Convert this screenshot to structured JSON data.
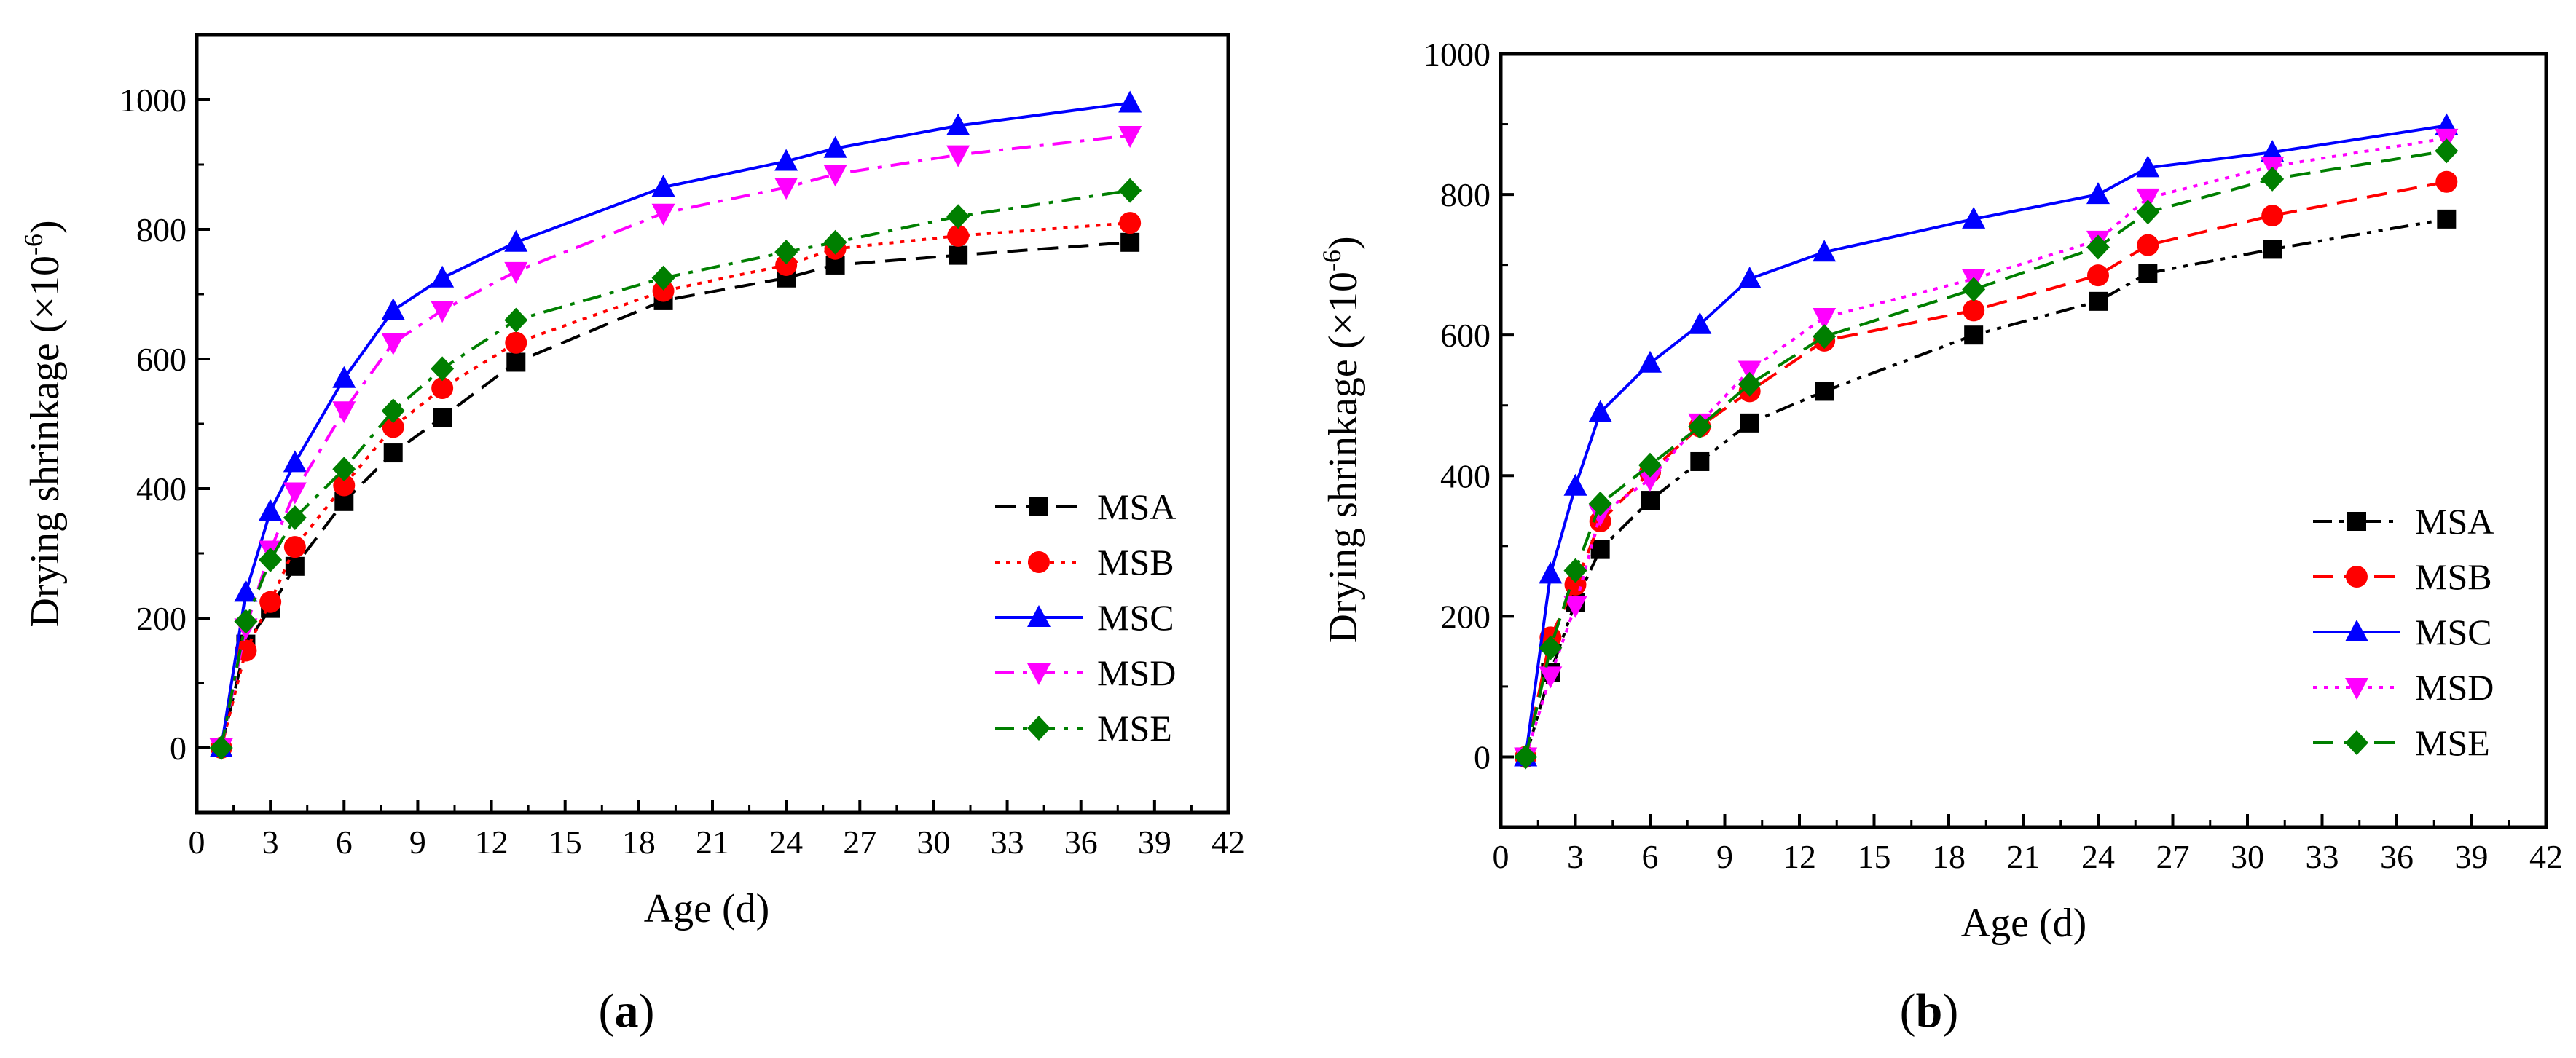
{
  "colors": {
    "MSA": "#000000",
    "MSB": "#ff0000",
    "MSC": "#0000ff",
    "MSD": "#ff00ff",
    "MSE": "#007f00"
  },
  "chart_data": [
    {
      "type": "line",
      "panel_label": "a",
      "xlabel": "Age (d)",
      "ylabel": "Drying shrinkage (×10",
      "ylabel_exp": "-6",
      "ylabel_close": ")",
      "xlim": [
        0,
        42
      ],
      "ylim": [
        -100,
        1100
      ],
      "xticks": [
        0,
        3,
        6,
        9,
        12,
        15,
        18,
        21,
        24,
        27,
        30,
        33,
        36,
        39,
        42
      ],
      "yticks": [
        0,
        200,
        400,
        600,
        800,
        1000
      ],
      "legend_position": "lower-right",
      "x": [
        1,
        2,
        3,
        4,
        6,
        8,
        10,
        13,
        19,
        24,
        26,
        31,
        38
      ],
      "series": [
        {
          "name": "MSA",
          "marker": "square",
          "dash": "dash",
          "values": [
            0,
            160,
            215,
            280,
            380,
            455,
            510,
            595,
            690,
            725,
            745,
            760,
            780
          ]
        },
        {
          "name": "MSB",
          "marker": "circle",
          "dash": "dot",
          "values": [
            0,
            150,
            225,
            310,
            405,
            495,
            555,
            625,
            705,
            745,
            770,
            790,
            810
          ]
        },
        {
          "name": "MSC",
          "marker": "triangle-up",
          "dash": "solid",
          "values": [
            0,
            240,
            365,
            440,
            570,
            675,
            725,
            780,
            865,
            905,
            925,
            960,
            995
          ]
        },
        {
          "name": "MSD",
          "marker": "triangle-down",
          "dash": "dashdot",
          "values": [
            0,
            185,
            305,
            395,
            520,
            625,
            675,
            735,
            825,
            865,
            885,
            915,
            945
          ]
        },
        {
          "name": "MSE",
          "marker": "diamond",
          "dash": "dashdot",
          "values": [
            0,
            195,
            290,
            355,
            430,
            520,
            585,
            660,
            725,
            765,
            780,
            820,
            860
          ]
        }
      ]
    },
    {
      "type": "line",
      "panel_label": "b",
      "xlabel": "Age (d)",
      "ylabel": "Drying shrinkage (×10",
      "ylabel_exp": "-6",
      "ylabel_close": ")",
      "xlim": [
        0,
        42
      ],
      "ylim": [
        -100,
        1000
      ],
      "xticks": [
        0,
        3,
        6,
        9,
        12,
        15,
        18,
        21,
        24,
        27,
        30,
        33,
        36,
        39,
        42
      ],
      "yticks": [
        0,
        200,
        400,
        600,
        800,
        1000
      ],
      "legend_position": "lower-right",
      "x": [
        1,
        2,
        3,
        4,
        6,
        8,
        10,
        13,
        19,
        24,
        26,
        31,
        38
      ],
      "series": [
        {
          "name": "MSA",
          "marker": "square",
          "dash": "dashdotdot",
          "values": [
            0,
            120,
            220,
            295,
            365,
            420,
            475,
            520,
            600,
            648,
            688,
            722,
            765
          ]
        },
        {
          "name": "MSB",
          "marker": "circle",
          "dash": "dash",
          "values": [
            0,
            170,
            245,
            335,
            405,
            470,
            520,
            592,
            635,
            685,
            728,
            770,
            818
          ]
        },
        {
          "name": "MSC",
          "marker": "triangle-up",
          "dash": "solid",
          "values": [
            0,
            260,
            385,
            490,
            560,
            615,
            680,
            718,
            765,
            800,
            838,
            860,
            898
          ]
        },
        {
          "name": "MSD",
          "marker": "triangle-down",
          "dash": "dot",
          "values": [
            0,
            115,
            215,
            345,
            395,
            475,
            550,
            625,
            680,
            735,
            795,
            840,
            880
          ]
        },
        {
          "name": "MSE",
          "marker": "diamond",
          "dash": "dash",
          "values": [
            0,
            155,
            265,
            360,
            415,
            470,
            530,
            598,
            665,
            725,
            775,
            822,
            862
          ]
        }
      ]
    }
  ]
}
